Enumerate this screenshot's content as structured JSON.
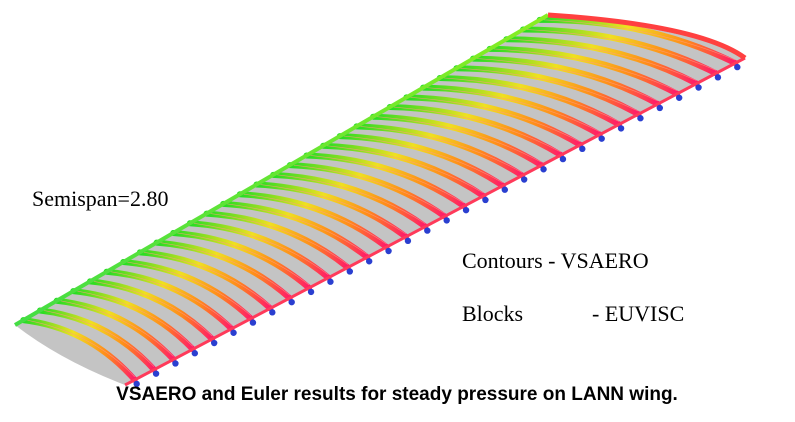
{
  "figure": {
    "labels": {
      "semispan": "Semispan=2.80",
      "contours": "Contours - VSAERO",
      "blocks": "Blocks",
      "blocks_source": "- EUVISC"
    },
    "caption": "VSAERO and Euler results for steady pressure on LANN wing."
  }
}
